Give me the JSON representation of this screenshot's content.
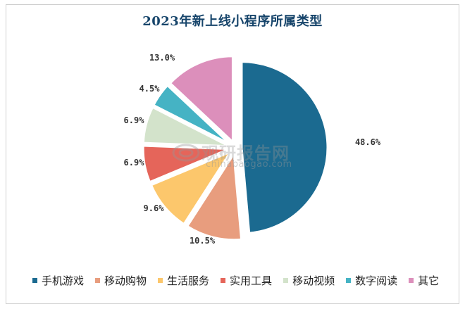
{
  "chart_data": {
    "type": "pie",
    "title": "2023年新上线小程序所属类型",
    "categories": [
      "手机游戏",
      "移动购物",
      "生活服务",
      "实用工具",
      "移动视频",
      "数字阅读",
      "其它"
    ],
    "values": [
      48.6,
      10.5,
      9.6,
      6.9,
      6.9,
      4.5,
      13.0
    ],
    "labels": [
      "48.6%",
      "10.5%",
      "9.6%",
      "6.9%",
      "6.9%",
      "4.5%",
      "13.0%"
    ],
    "colors": [
      "#1b6a90",
      "#e89d7e",
      "#fcc76c",
      "#e5655a",
      "#d3e3cb",
      "#45b3c4",
      "#dc8fbb"
    ],
    "legend_position": "bottom",
    "exploded": true
  },
  "watermark": {
    "text_cn": "观研报告网",
    "text_en": "chinabaogao.com"
  }
}
